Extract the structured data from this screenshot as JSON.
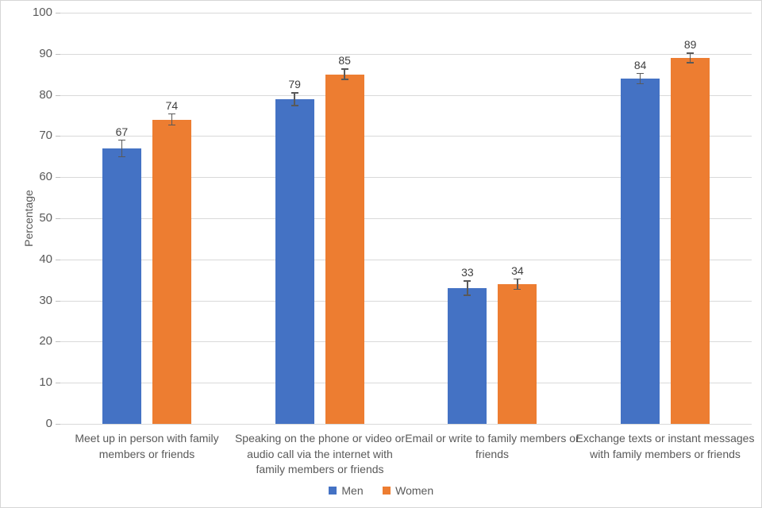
{
  "chart_data": {
    "type": "bar",
    "title": "",
    "xlabel": "",
    "ylabel": "Percentage",
    "ylim": [
      0,
      100
    ],
    "ytick_step": 10,
    "ytick_labels": [
      "0",
      "10",
      "20",
      "30",
      "40",
      "50",
      "60",
      "70",
      "80",
      "90",
      "100"
    ],
    "grid": true,
    "legend_position": "bottom",
    "categories": [
      "Meet up in person with family\nmembers or friends",
      "Speaking on the phone or video or\naudio call via the internet with\nfamily members or friends",
      "Email or write to family members or\nfriends",
      "Exchange texts or instant messages\nwith family members or friends"
    ],
    "series": [
      {
        "name": "Men",
        "color": "#4472C4",
        "values": [
          67,
          79,
          33,
          84
        ],
        "error_bars": [
          2.0,
          1.5,
          1.7,
          1.2
        ]
      },
      {
        "name": "Women",
        "color": "#ED7D31",
        "values": [
          74,
          85,
          34,
          89
        ],
        "error_bars": [
          1.3,
          1.2,
          1.2,
          1.1
        ]
      }
    ]
  },
  "styles": {
    "gridline_color": "#d9d9d9",
    "axis_tick_color": "#bfbfbf",
    "axis_text_color": "#595959",
    "value_label_color": "#404040",
    "error_bar_color": "#595959"
  }
}
